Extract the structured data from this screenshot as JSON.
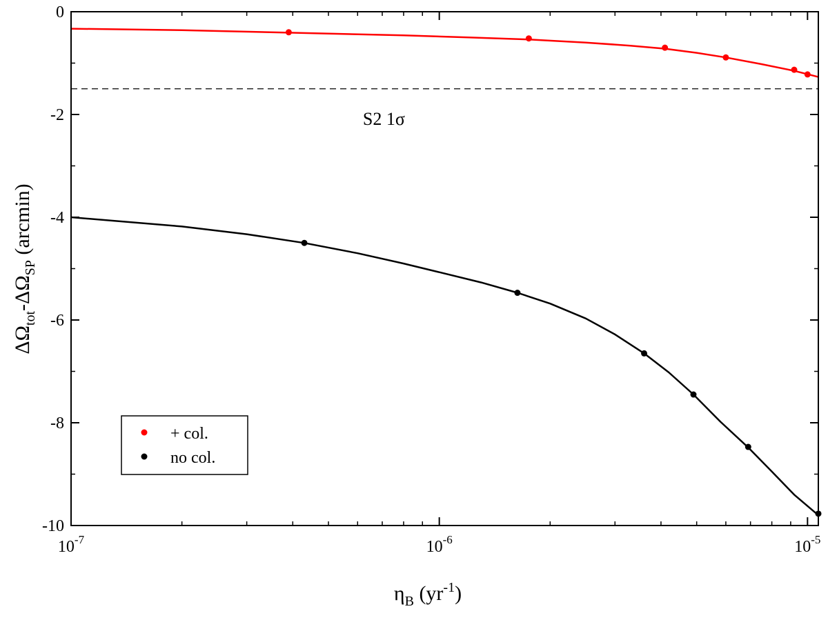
{
  "chart_data": {
    "type": "line",
    "xscale": "log",
    "xlim": [
      1e-07,
      1.07e-05
    ],
    "ylim": [
      -10,
      0
    ],
    "xlabel": {
      "main": "η",
      "sub": "B",
      "unit_open": " (yr",
      "unit_sup": "-1",
      "unit_close": ")"
    },
    "ylabel": {
      "p1": "ΔΩ",
      "s1": "tot",
      "p2": "-ΔΩ",
      "s2": "SP",
      "p3": " (arcmin)"
    },
    "x_ticks": [
      {
        "value": 1e-07,
        "base": "10",
        "exp": "-7"
      },
      {
        "value": 1e-06,
        "base": "10",
        "exp": "-6"
      },
      {
        "value": 1e-05,
        "base": "10",
        "exp": "-5"
      }
    ],
    "y_ticks": [
      {
        "value": 0,
        "label": "0"
      },
      {
        "value": -2,
        "label": "-2"
      },
      {
        "value": -4,
        "label": "-4"
      },
      {
        "value": -6,
        "label": "-6"
      },
      {
        "value": -8,
        "label": "-8"
      },
      {
        "value": -10,
        "label": "-10"
      }
    ],
    "hline": {
      "y": -1.5,
      "style": "dashed",
      "label": "S2 1σ",
      "label_x": 6.2e-07,
      "label_y": -2.2
    },
    "legend": {
      "position": "bottom-left"
    },
    "series": [
      {
        "name": "+ col.",
        "color": "#ff0000",
        "curve": [
          [
            1e-07,
            -0.33
          ],
          [
            2e-07,
            -0.36
          ],
          [
            4e-07,
            -0.41
          ],
          [
            8e-07,
            -0.46
          ],
          [
            1.2e-06,
            -0.5
          ],
          [
            1.75e-06,
            -0.54
          ],
          [
            2.5e-06,
            -0.6
          ],
          [
            3.3e-06,
            -0.66
          ],
          [
            4.1e-06,
            -0.72
          ],
          [
            5e-06,
            -0.8
          ],
          [
            6e-06,
            -0.89
          ],
          [
            7.5e-06,
            -1.02
          ],
          [
            9.2e-06,
            -1.15
          ],
          [
            1.07e-05,
            -1.27
          ]
        ],
        "markers": [
          [
            3.9e-07,
            -0.4
          ],
          [
            1.75e-06,
            -0.52
          ],
          [
            4.1e-06,
            -0.7
          ],
          [
            6e-06,
            -0.89
          ],
          [
            9.2e-06,
            -1.13
          ],
          [
            1e-05,
            -1.22
          ]
        ]
      },
      {
        "name": "no col.",
        "color": "#000000",
        "curve": [
          [
            1e-07,
            -4.0
          ],
          [
            2e-07,
            -4.18
          ],
          [
            3e-07,
            -4.33
          ],
          [
            4.3e-07,
            -4.5
          ],
          [
            6e-07,
            -4.7
          ],
          [
            8e-07,
            -4.9
          ],
          [
            1e-06,
            -5.07
          ],
          [
            1.3e-06,
            -5.27
          ],
          [
            1.63e-06,
            -5.47
          ],
          [
            2e-06,
            -5.68
          ],
          [
            2.5e-06,
            -5.97
          ],
          [
            3e-06,
            -6.28
          ],
          [
            3.6e-06,
            -6.65
          ],
          [
            4.2e-06,
            -7.02
          ],
          [
            4.9e-06,
            -7.45
          ],
          [
            5.8e-06,
            -7.98
          ],
          [
            6.9e-06,
            -8.48
          ],
          [
            8e-06,
            -8.95
          ],
          [
            9.2e-06,
            -9.4
          ],
          [
            1.07e-05,
            -9.8
          ]
        ],
        "markers": [
          [
            4.3e-07,
            -4.5
          ],
          [
            1.63e-06,
            -5.47
          ],
          [
            3.6e-06,
            -6.65
          ],
          [
            4.9e-06,
            -7.45
          ],
          [
            6.9e-06,
            -8.47
          ],
          [
            1.07e-05,
            -9.77
          ]
        ]
      }
    ]
  }
}
